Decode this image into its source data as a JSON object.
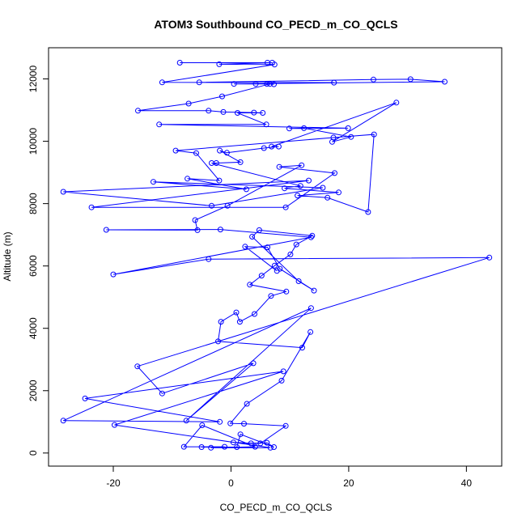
{
  "chart_data": {
    "type": "line",
    "title": "ATOM3 Southbound CO_PECD_m_CO_QCLS",
    "xlabel": "CO_PECD_m_CO_QCLS",
    "ylabel": "Altitude (m)",
    "xlim": [
      -31,
      46
    ],
    "ylim": [
      -420,
      13000
    ],
    "xticks": [
      -20,
      0,
      20,
      40
    ],
    "yticks": [
      0,
      2000,
      4000,
      6000,
      8000,
      10000,
      12000
    ],
    "grid": false,
    "color": "#0000ff",
    "markers": "open-circle",
    "series": [
      {
        "x": [
          -8.7,
          6.2,
          7.0,
          -2.0,
          7.4,
          -11.7,
          17.5,
          -5.4,
          24.2,
          30.5,
          36.3,
          0.5,
          4.2,
          6.1,
          7.3,
          6.6,
          -1.5,
          -7.2,
          -15.8,
          -3.8,
          -1.3,
          3.9,
          5.4,
          1.1,
          6.0,
          -12.2,
          19.9,
          9.9,
          12.4,
          20.4,
          17.2,
          28.1,
          6.9,
          8.1,
          5.6,
          -0.7,
          -1.9,
          1.6,
          -2.5,
          -3.3,
          11.8,
          9.1,
          18.3,
          11.3,
          16.4,
          23.3,
          24.3,
          17.4,
          -9.4,
          -5.9,
          -2.0,
          -7.4,
          2.6,
          -13.2,
          15.6,
          -3.3,
          -28.5,
          13.2,
          -23.7,
          9.3,
          17.6,
          8.2,
          12.0,
          -0.6,
          -6.1,
          -5.7,
          -21.2,
          -1.8,
          13.6,
          -20.0,
          -3.8,
          43.9,
          -15.9,
          -11.7,
          3.8,
          -7.6,
          13.6,
          -28.5,
          -1.9,
          -24.8,
          8.9,
          -19.8,
          6.7,
          -3.4,
          4.1,
          -4.9,
          -8.0,
          -1.1,
          -5.0,
          1.0,
          1.6,
          7.3,
          6.1,
          3.4,
          0.4,
          5.0,
          9.3,
          2.2,
          -0.1,
          2.7,
          8.6,
          13.5,
          12.1,
          -2.2,
          -1.7,
          0.9,
          1.5,
          4.0,
          6.8,
          9.4,
          3.2,
          5.2,
          7.4,
          10.1,
          11.1,
          13.8,
          4.8,
          3.6,
          11.5,
          14.1,
          8.3,
          6.2,
          2.4,
          7.8
        ],
        "y": [
          12520,
          12520,
          12520,
          12470,
          12460,
          11890,
          11880,
          11890,
          11980,
          11990,
          11910,
          11840,
          11840,
          11840,
          11830,
          11840,
          11440,
          11210,
          10980,
          10980,
          10940,
          10920,
          10910,
          10910,
          10540,
          10540,
          10420,
          10410,
          10420,
          10140,
          9980,
          11240,
          9830,
          9830,
          9780,
          9630,
          9700,
          9330,
          9300,
          9300,
          8570,
          8490,
          8360,
          8260,
          8190,
          7730,
          10220,
          10120,
          9700,
          9620,
          8740,
          8800,
          8460,
          8700,
          8510,
          7930,
          8380,
          8740,
          7880,
          7880,
          8980,
          9180,
          9230,
          7930,
          7470,
          7150,
          7160,
          7170,
          6920,
          5730,
          6220,
          6270,
          2780,
          1910,
          2880,
          1040,
          4650,
          1040,
          1000,
          1750,
          2620,
          900,
          170,
          170,
          200,
          890,
          200,
          200,
          190,
          190,
          600,
          190,
          330,
          310,
          340,
          310,
          870,
          940,
          950,
          1580,
          2320,
          3880,
          3380,
          3580,
          4210,
          4510,
          4210,
          4460,
          5040,
          5180,
          5400,
          5690,
          6010,
          6370,
          6690,
          6970,
          7150,
          6940,
          5510,
          5210,
          5910,
          6600,
          6620,
          5840
        ]
      }
    ]
  }
}
